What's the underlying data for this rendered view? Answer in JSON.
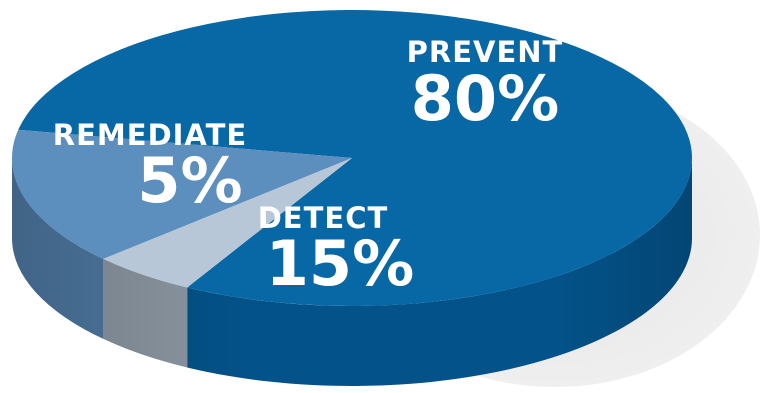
{
  "chart_data": {
    "type": "pie",
    "title": "",
    "categories": [
      "PREVENT",
      "DETECT",
      "REMEDIATE"
    ],
    "values": [
      80,
      15,
      5
    ],
    "value_labels": [
      "80%",
      "15%",
      "5%"
    ],
    "colors": {
      "prevent_top": "#0867a5",
      "prevent_side": "#035289",
      "detect_top": "#5c8fbd",
      "detect_side": "#4f7aa4",
      "remediate_top": "#b7c7d7",
      "remediate_side": "#8c97a3",
      "shadow": "#e6e6e6"
    },
    "legend": "none",
    "style": "3d-pie"
  }
}
